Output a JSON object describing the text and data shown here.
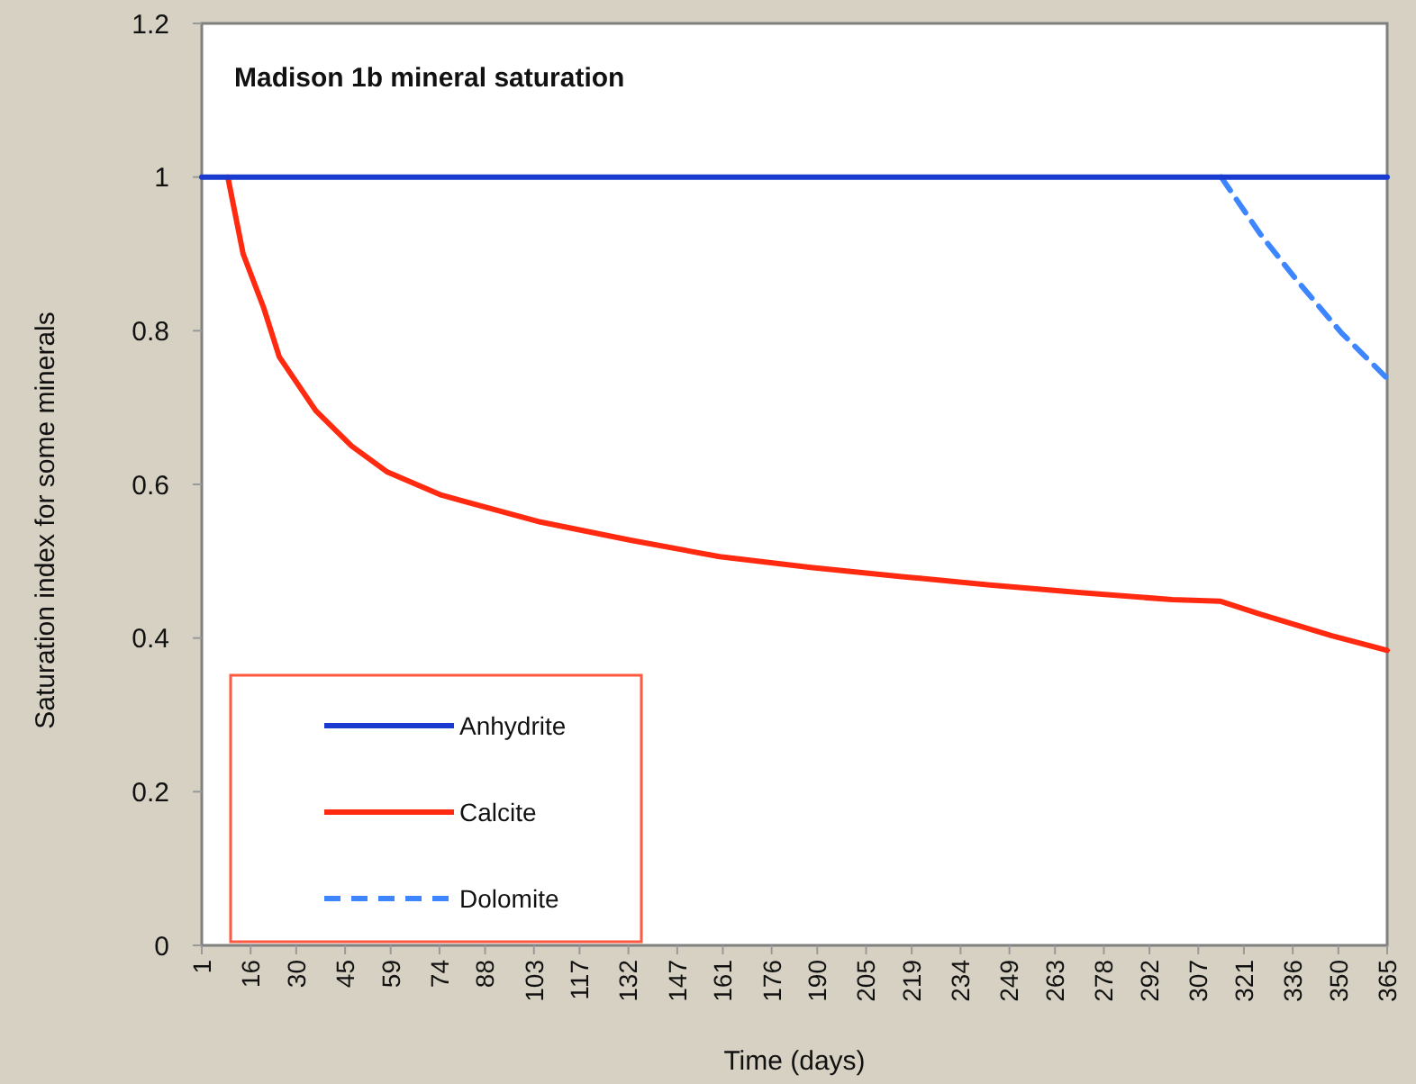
{
  "chart_data": {
    "type": "line",
    "title": "Madison 1b mineral saturation",
    "xlabel": "Time (days)",
    "ylabel": "Saturation index for some minerals",
    "xlim": [
      1,
      365
    ],
    "xticks": [
      1,
      16,
      30,
      45,
      59,
      74,
      88,
      103,
      117,
      132,
      147,
      161,
      176,
      190,
      205,
      219,
      234,
      249,
      263,
      278,
      292,
      307,
      321,
      336,
      350,
      365
    ],
    "ylim": [
      0,
      1.2
    ],
    "yticks": [
      0,
      0.2,
      0.4,
      0.6,
      0.8,
      1,
      1.2
    ],
    "legend": "bottom left",
    "grid": false,
    "series": [
      {
        "name": "Anhydrite",
        "color": "#1a3bd0",
        "line_style": "solid",
        "x": [
          1,
          365
        ],
        "values": [
          1,
          1
        ]
      },
      {
        "name": "Calcite",
        "color": "#ff2a10",
        "line_style": "solid",
        "x": [
          9,
          13.7,
          20,
          24.8,
          36,
          47,
          58,
          74.6,
          105,
          133,
          160,
          188,
          216,
          243,
          271,
          299,
          313.6,
          326,
          348,
          365
        ],
        "values": [
          1,
          0.9,
          0.83,
          0.766,
          0.696,
          0.65,
          0.616,
          0.586,
          0.551,
          0.527,
          0.506,
          0.492,
          0.48,
          0.469,
          0.459,
          0.45,
          0.448,
          0.431,
          0.403,
          0.384
        ]
      },
      {
        "name": "Dolomite",
        "color": "#3d86ff",
        "line_style": "dashed",
        "x": [
          314,
          326,
          337,
          351,
          365
        ],
        "values": [
          1,
          0.926,
          0.867,
          0.797,
          0.738
        ]
      }
    ]
  }
}
